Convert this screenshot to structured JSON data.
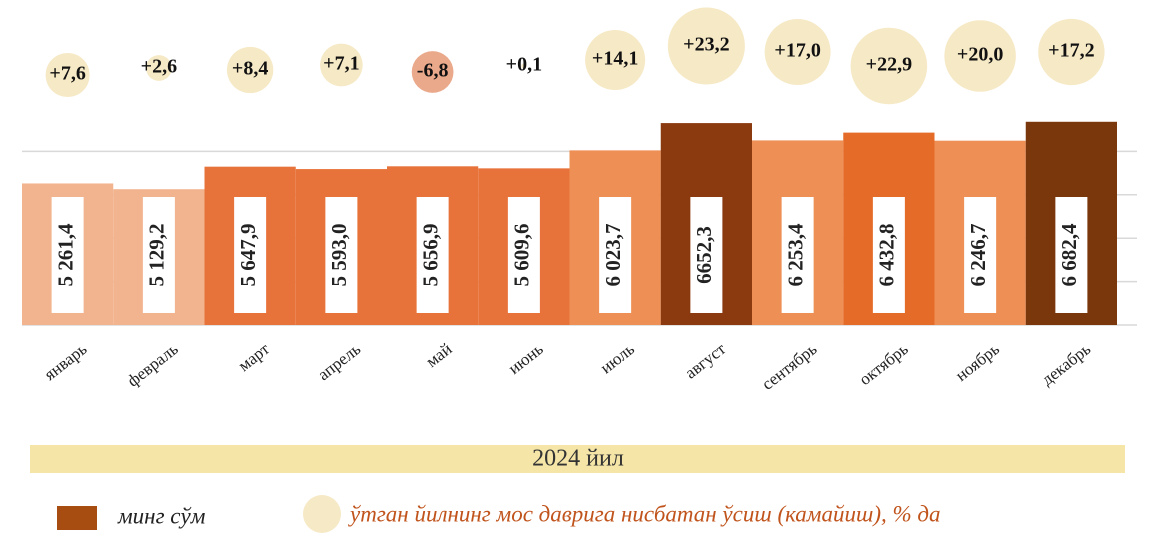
{
  "chart_data": {
    "type": "bar",
    "categories": [
      "январь",
      "февраль",
      "март",
      "апрель",
      "май",
      "июнь",
      "июль",
      "август",
      "сентябрь",
      "октябрь",
      "ноябрь",
      "декабрь"
    ],
    "series": [
      {
        "name": "минг сўм",
        "color": "#a84d12",
        "colors": [
          "#f2b48e",
          "#f2b48e",
          "#e8733a",
          "#e8733a",
          "#e8733a",
          "#e8733a",
          "#ee9055",
          "#8b3a10",
          "#ee9055",
          "#e56c28",
          "#ee9055",
          "#7a370c"
        ],
        "values": [
          5261.4,
          5129.2,
          5647.9,
          5593.0,
          5656.9,
          5609.6,
          6023.7,
          6652.3,
          6253.4,
          6432.8,
          6246.7,
          6682.4
        ],
        "value_labels": [
          "5 261,4",
          "5 129,2",
          "5 647,9",
          "5 593,0",
          "5 656,9",
          "5 609,6",
          "6 023,7",
          "6652,3",
          "6 253,4",
          "6 432,8",
          "6 246,7",
          "6 682,4"
        ]
      },
      {
        "name": "ўтган йилнинг мос даврига нисбатан ўсиш (камайиш), % да",
        "color": "#f6e9c6",
        "negative_color": "#eba98c",
        "values": [
          7.6,
          2.6,
          8.4,
          7.1,
          -6.8,
          0.1,
          14.1,
          23.2,
          17.0,
          22.9,
          20.0,
          17.2
        ],
        "value_labels": [
          "+7,6",
          "+2,6",
          "+8,4",
          "+7,1",
          "-6,8",
          "+0,1",
          "+14,1",
          "+23,2",
          "+17,0",
          "+22,9",
          "+20,0",
          "+17,2"
        ]
      }
    ],
    "x_label": "2024 йил",
    "ylim": [
      2000,
      7000
    ],
    "yticks": [
      2000,
      3000,
      4000,
      5000,
      6000
    ],
    "grid": true
  }
}
